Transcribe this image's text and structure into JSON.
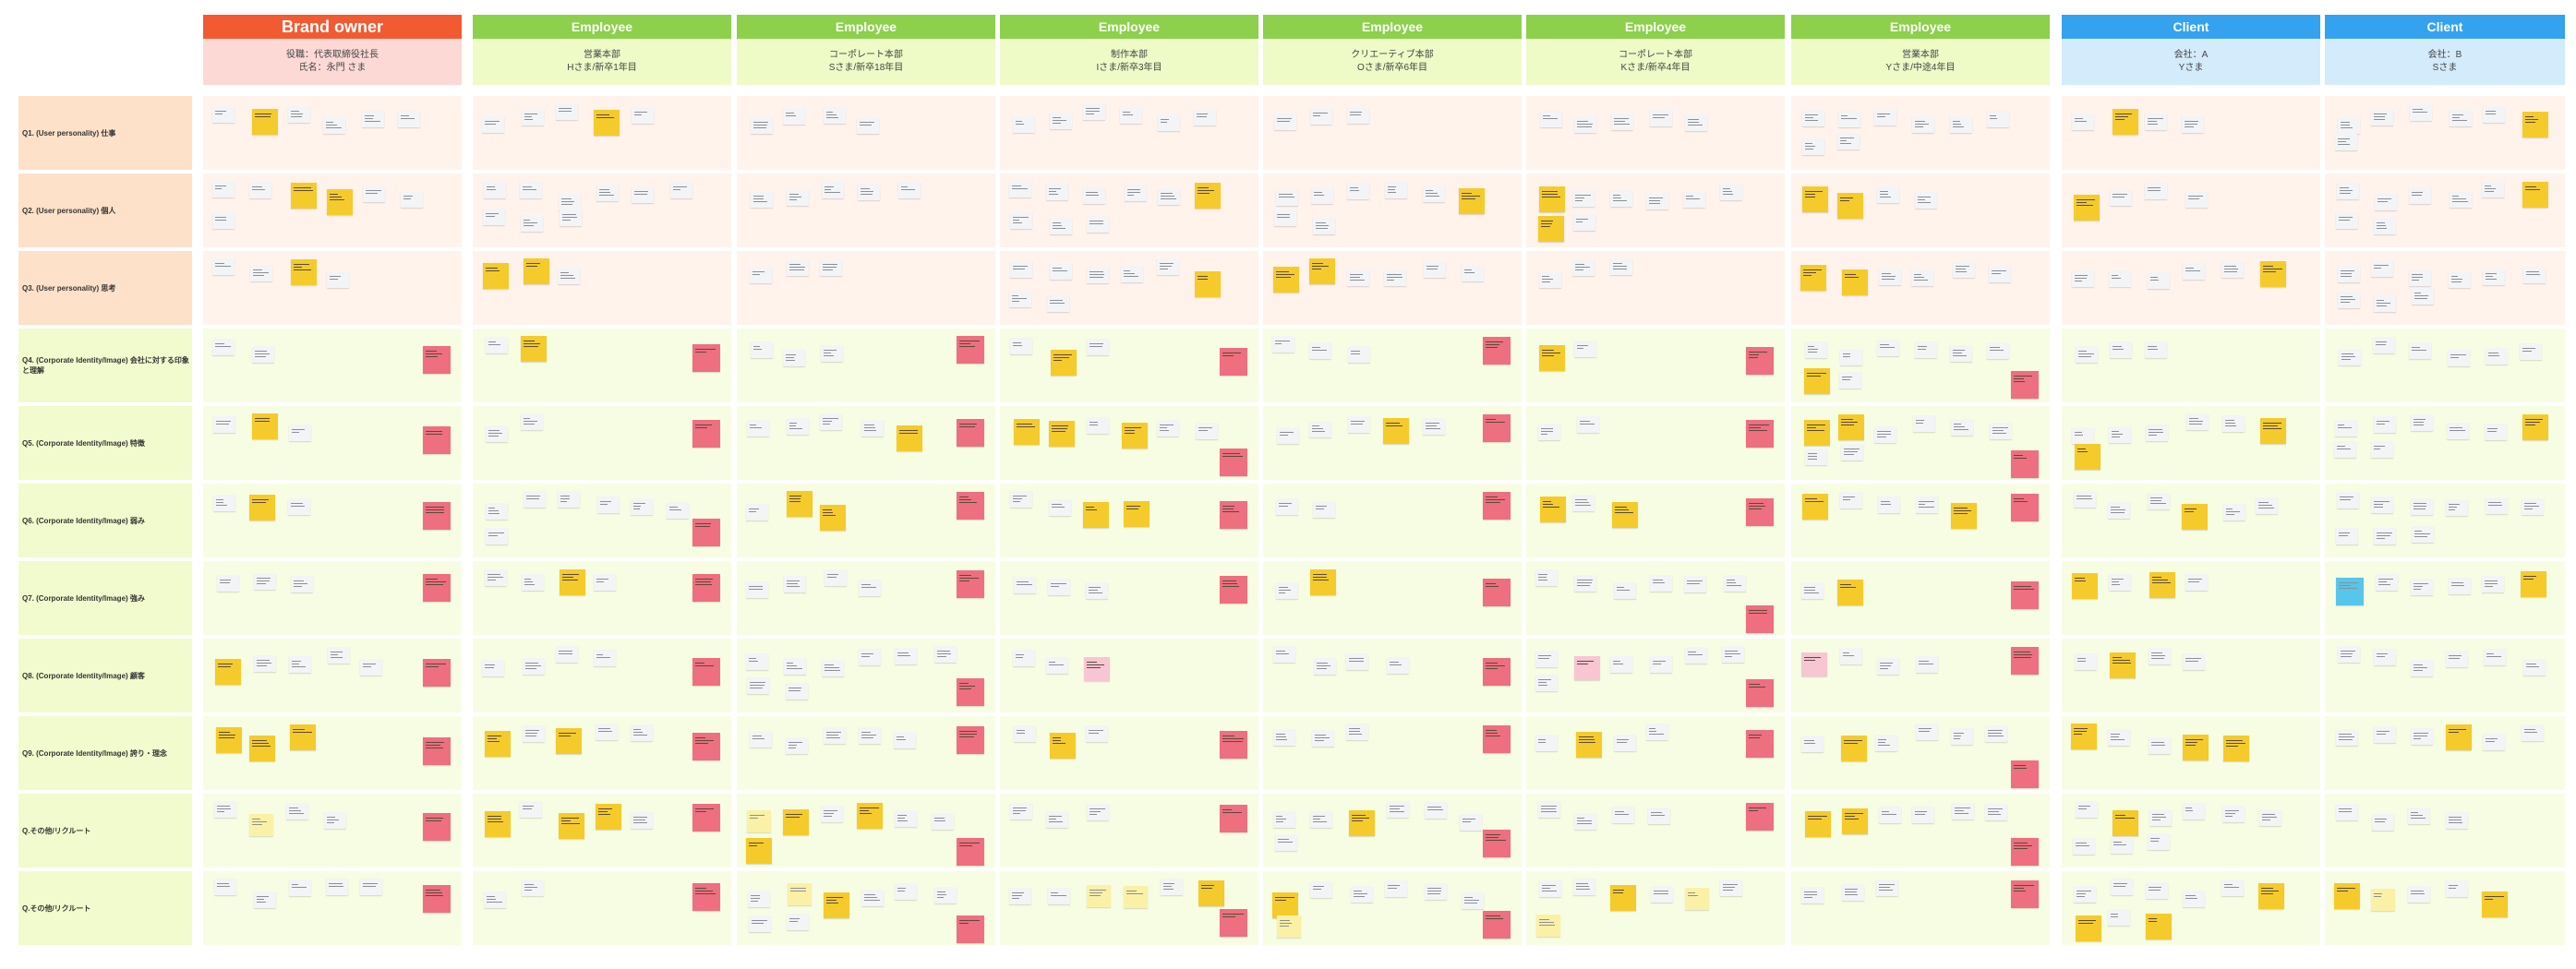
{
  "columns": [
    {
      "title": "Brand owner",
      "role": "役職：代表取締役社長",
      "name": "氏名：永門 さま",
      "color": "#f25a32",
      "sub_bg": "#fdd9d5"
    },
    {
      "title": "Employee",
      "role": "営業本部",
      "name": "Hさま/新卒1年目",
      "color": "#8cd04c",
      "sub_bg": "#eefbc7"
    },
    {
      "title": "Employee",
      "role": "コーポレート本部",
      "name": "Sさま/新卒18年目",
      "color": "#8cd04c",
      "sub_bg": "#eefbc7"
    },
    {
      "title": "Employee",
      "role": "制作本部",
      "name": "Iさま/新卒3年目",
      "color": "#8cd04c",
      "sub_bg": "#eefbc7"
    },
    {
      "title": "Employee",
      "role": "クリエーティブ本部",
      "name": "Oさま/新卒6年目",
      "color": "#8cd04c",
      "sub_bg": "#eefbc7"
    },
    {
      "title": "Employee",
      "role": "コーポレート本部",
      "name": "Kさま/新卒4年目",
      "color": "#8cd04c",
      "sub_bg": "#eefbc7"
    },
    {
      "title": "Employee",
      "role": "営業本部",
      "name": "Yさま/中途4年目",
      "color": "#8cd04c",
      "sub_bg": "#eefbc7"
    },
    {
      "title": "Client",
      "role": "会社：A",
      "name": "Yさま",
      "color": "#35a2ef",
      "sub_bg": "#d3ebfb"
    },
    {
      "title": "Client",
      "role": "会社：B",
      "name": "Sさま",
      "color": "#35a2ef",
      "sub_bg": "#d3ebfb"
    }
  ],
  "rows": [
    {
      "label": "Q1. (User personality) 仕事",
      "label_bg": "#fde1c9",
      "cell_bg": "#fff3ec"
    },
    {
      "label": "Q2. (User personality) 個人",
      "label_bg": "#fde1c9",
      "cell_bg": "#fff3ec"
    },
    {
      "label": "Q3. (User personality) 思考",
      "label_bg": "#fde1c9",
      "cell_bg": "#fff3ec"
    },
    {
      "label": "Q4. (Corporate Identity/Image) 会社に対する印象と理解",
      "label_bg": "#f2fbcd",
      "cell_bg": "#f7fde3"
    },
    {
      "label": "Q5. (Corporate Identity/Image) 特徴",
      "label_bg": "#f2fbcd",
      "cell_bg": "#f7fde3"
    },
    {
      "label": "Q6. (Corporate Identity/Image) 弱み",
      "label_bg": "#f2fbcd",
      "cell_bg": "#f7fde3"
    },
    {
      "label": "Q7. (Corporate Identity/Image) 強み",
      "label_bg": "#f2fbcd",
      "cell_bg": "#f7fde3"
    },
    {
      "label": "Q8. (Corporate Identity/Image) 顧客",
      "label_bg": "#f2fbcd",
      "cell_bg": "#f7fde3"
    },
    {
      "label": "Q9. (Corporate Identity/Image) 誇り・理念",
      "label_bg": "#f2fbcd",
      "cell_bg": "#f7fde3"
    },
    {
      "label": "Q.その他/リクルート",
      "label_bg": "#f2fbcd",
      "cell_bg": "#f7fde3"
    },
    {
      "label": "Q.その他/リクルート",
      "label_bg": "#f2fbcd",
      "cell_bg": "#f7fde3"
    }
  ]
}
